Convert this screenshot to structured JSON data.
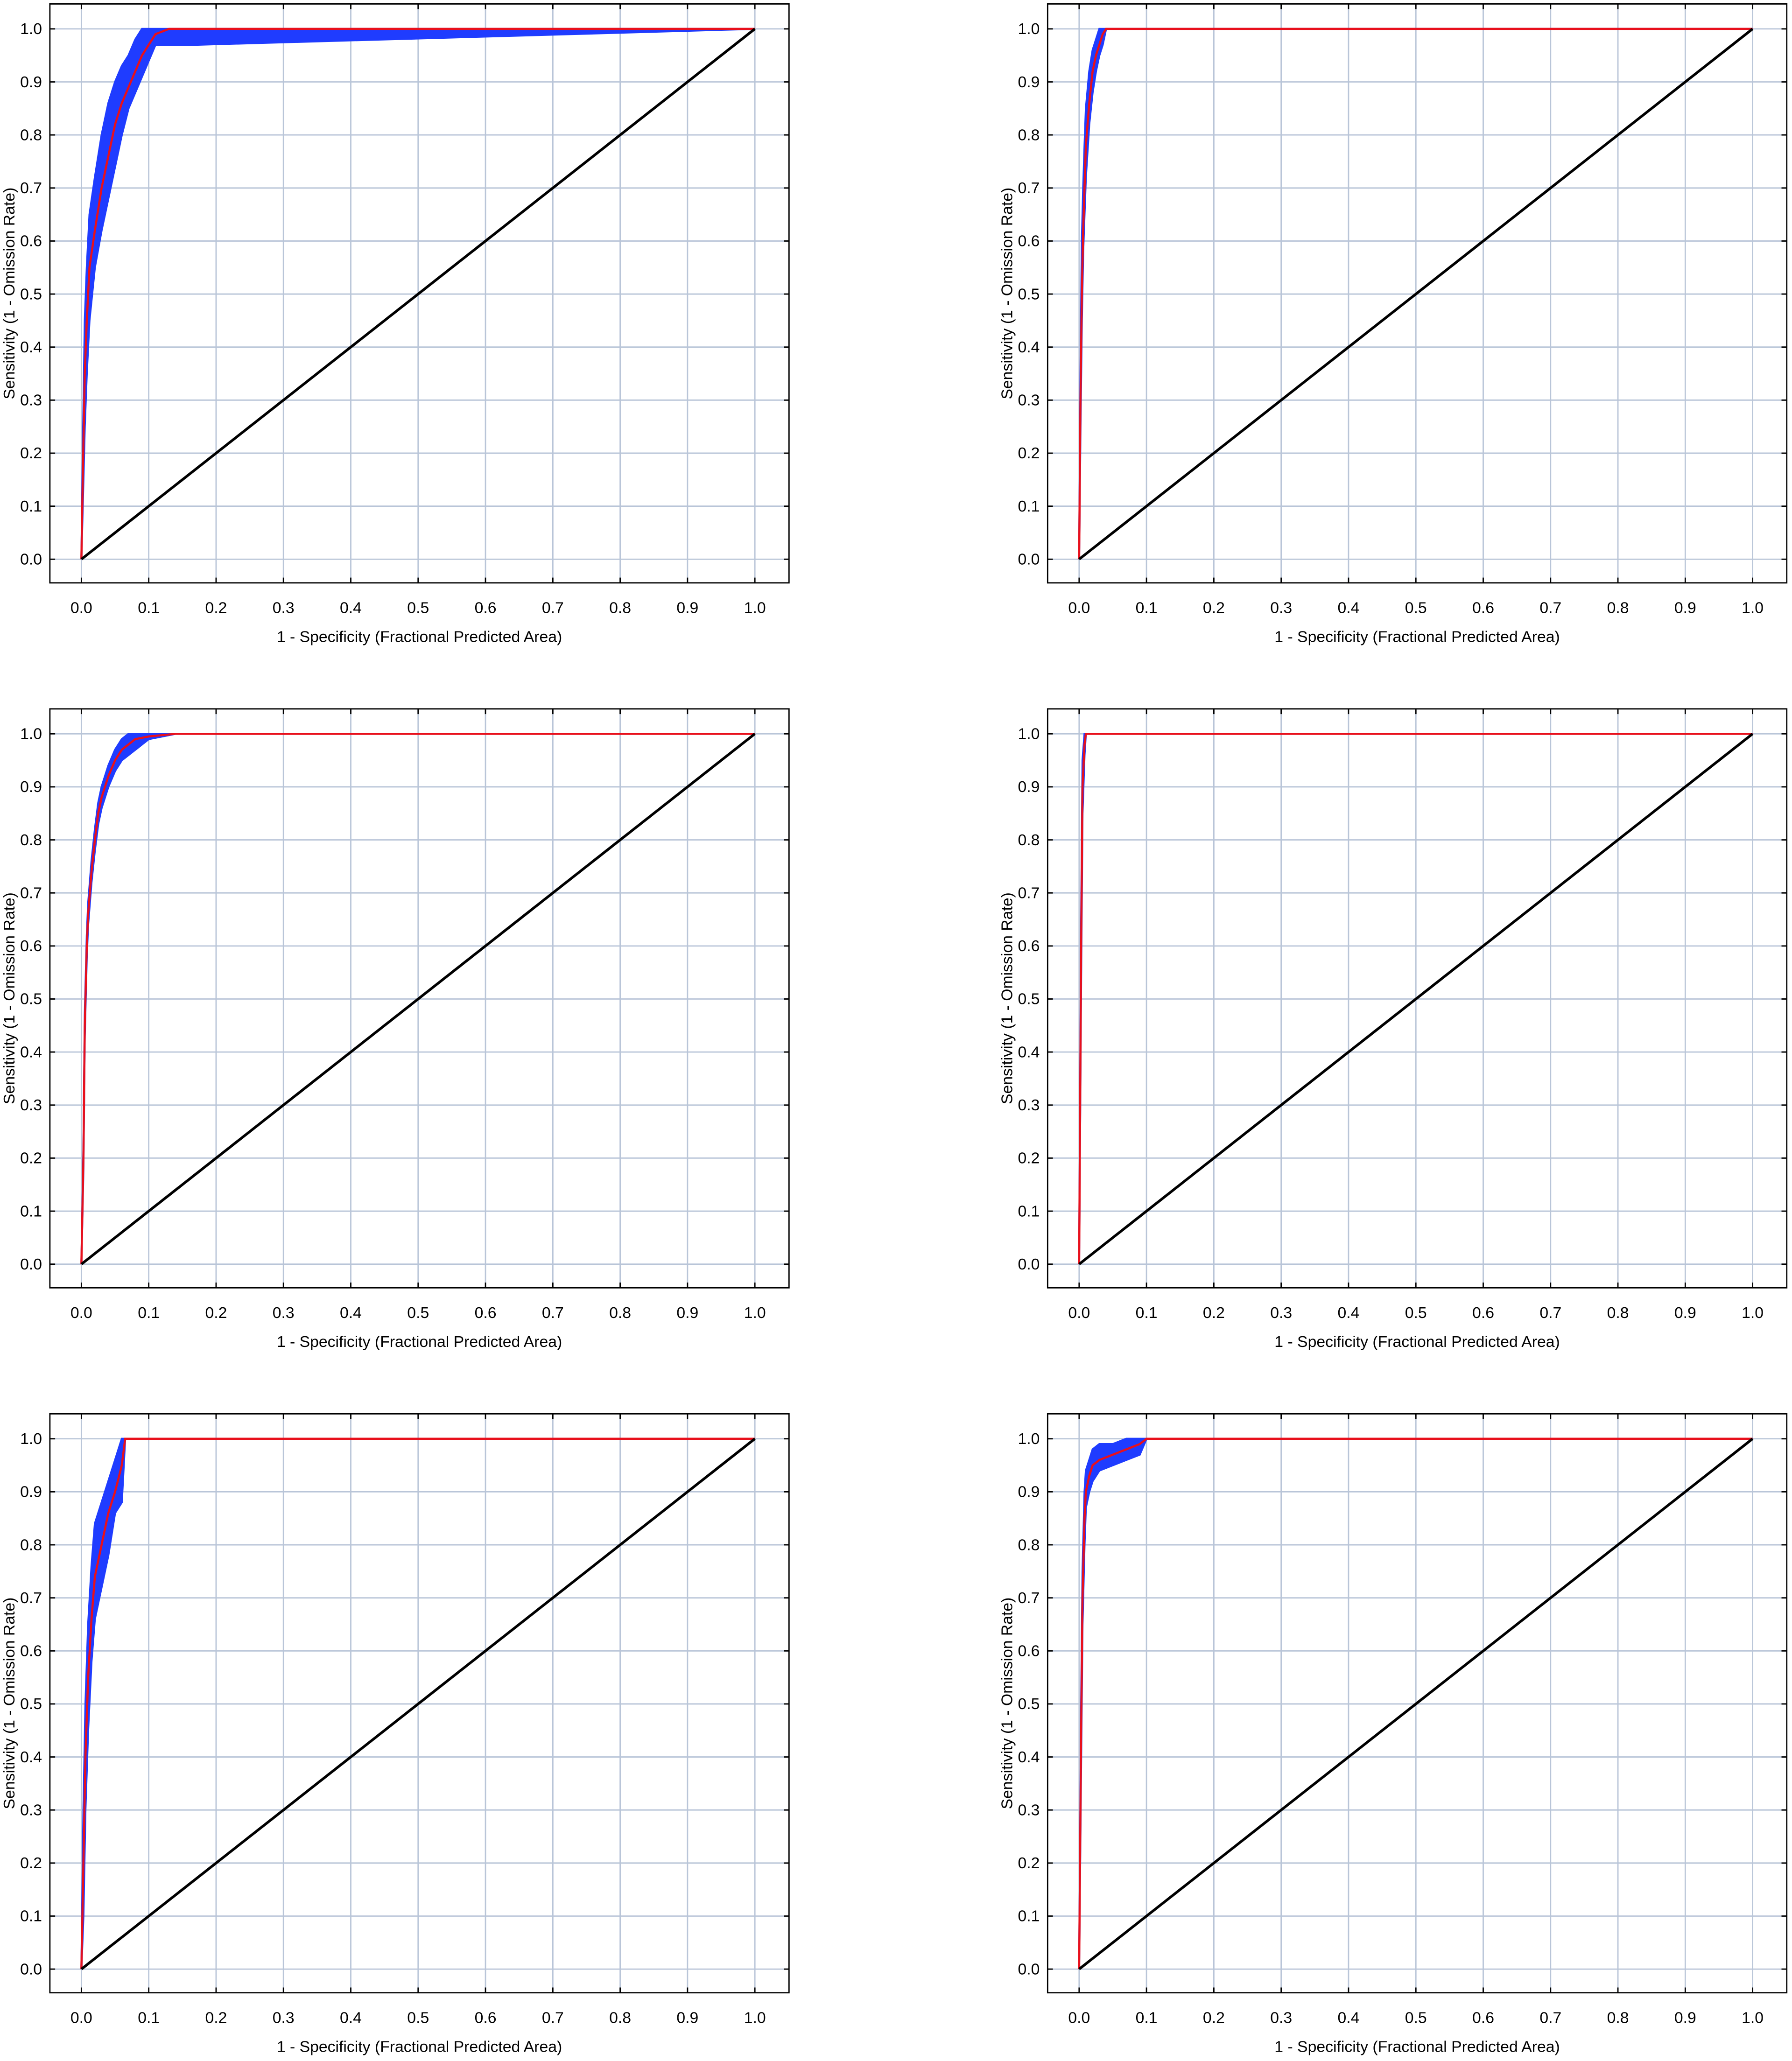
{
  "chart_data": [
    {
      "type": "line",
      "xlabel": "1 - Specificity (Fractional Predicted Area)",
      "ylabel": "Sensitivity (1 - Omission Rate)",
      "xlim": [
        0,
        1
      ],
      "ylim": [
        0,
        1
      ],
      "grid": true,
      "xticks": [
        {
          "value": 0,
          "label": "0.0"
        },
        0.1,
        0.2,
        0.3,
        0.4,
        0.5,
        0.6,
        0.7,
        0.8,
        0.9,
        {
          "value": 1,
          "label": "1.0"
        }
      ],
      "yticks": [
        {
          "value": 0,
          "label": "0.0"
        },
        0.1,
        0.2,
        0.3,
        0.4,
        0.5,
        0.6,
        0.7,
        0.8,
        0.9,
        {
          "value": 1,
          "label": "1.0"
        }
      ],
      "series": [
        {
          "color": "#e8101c",
          "band_color": "#1f3cff",
          "x": [
            0,
            0.002,
            0.005,
            0.008,
            0.012,
            0.02,
            0.03,
            0.04,
            0.05,
            0.06,
            0.07,
            0.08,
            0.09,
            0.1,
            0.11,
            0.13,
            0.17,
            1
          ],
          "values": [
            0,
            0.15,
            0.35,
            0.45,
            0.55,
            0.62,
            0.7,
            0.76,
            0.82,
            0.86,
            0.89,
            0.92,
            0.95,
            0.97,
            0.99,
            1,
            1,
            1
          ],
          "lower": [
            0,
            0.1,
            0.25,
            0.35,
            0.45,
            0.55,
            0.62,
            0.68,
            0.74,
            0.8,
            0.85,
            0.88,
            0.91,
            0.94,
            0.97,
            0.97,
            0.97,
            1
          ],
          "upper": [
            0,
            0.2,
            0.45,
            0.55,
            0.65,
            0.72,
            0.8,
            0.86,
            0.9,
            0.93,
            0.95,
            0.98,
            1,
            1,
            1,
            1,
            1,
            1
          ]
        },
        {
          "color": "#000000",
          "x": [
            0,
            1
          ],
          "values": [
            0,
            1
          ]
        }
      ]
    },
    {
      "type": "line",
      "xlabel": "1 - Specificity (Fractional Predicted Area)",
      "ylabel": "Sensitivity (1 - Omission Rate)",
      "xlim": [
        0,
        1
      ],
      "ylim": [
        0,
        1
      ],
      "grid": true,
      "xticks": [
        {
          "value": 0,
          "label": "0.0"
        },
        0.1,
        0.2,
        0.3,
        0.4,
        0.5,
        0.6,
        0.7,
        0.8,
        0.9,
        {
          "value": 1,
          "label": "1.0"
        }
      ],
      "yticks": [
        {
          "value": 0,
          "label": "0.0"
        },
        0.1,
        0.2,
        0.3,
        0.4,
        0.5,
        0.6,
        0.7,
        0.8,
        0.9,
        {
          "value": 1,
          "label": "1.0"
        }
      ],
      "series": [
        {
          "color": "#e8101c",
          "band_color": "#1f3cff",
          "x": [
            0,
            0.002,
            0.004,
            0.006,
            0.008,
            0.01,
            0.015,
            0.02,
            0.025,
            0.03,
            0.035,
            0.04,
            1
          ],
          "values": [
            0,
            0.3,
            0.5,
            0.62,
            0.7,
            0.78,
            0.86,
            0.92,
            0.95,
            0.97,
            0.99,
            1,
            1
          ],
          "lower": [
            0,
            0.25,
            0.45,
            0.58,
            0.65,
            0.72,
            0.82,
            0.88,
            0.92,
            0.95,
            0.97,
            1,
            1
          ],
          "upper": [
            0,
            0.35,
            0.6,
            0.7,
            0.78,
            0.85,
            0.92,
            0.96,
            0.98,
            1,
            1,
            1,
            1
          ]
        },
        {
          "color": "#000000",
          "x": [
            0,
            1
          ],
          "values": [
            0,
            1
          ]
        }
      ]
    },
    {
      "type": "line",
      "xlabel": "1 - Specificity (Fractional Predicted Area)",
      "ylabel": "Sensitivity (1 - Omission Rate)",
      "xlim": [
        0,
        1
      ],
      "ylim": [
        0,
        1
      ],
      "grid": true,
      "xticks": [
        {
          "value": 0,
          "label": "0.0"
        },
        0.1,
        0.2,
        0.3,
        0.4,
        0.5,
        0.6,
        0.7,
        0.8,
        0.9,
        {
          "value": 1,
          "label": "1.0"
        }
      ],
      "yticks": [
        {
          "value": 0,
          "label": "0.0"
        },
        0.1,
        0.2,
        0.3,
        0.4,
        0.5,
        0.6,
        0.7,
        0.8,
        0.9,
        {
          "value": 1,
          "label": "1.0"
        }
      ],
      "series": [
        {
          "color": "#e8101c",
          "band_color": "#1f3cff",
          "x": [
            0,
            0.003,
            0.005,
            0.008,
            0.01,
            0.015,
            0.02,
            0.025,
            0.03,
            0.04,
            0.05,
            0.06,
            0.07,
            0.08,
            0.1,
            0.14,
            1
          ],
          "values": [
            0,
            0.2,
            0.45,
            0.6,
            0.66,
            0.74,
            0.8,
            0.85,
            0.88,
            0.92,
            0.95,
            0.97,
            0.98,
            0.99,
            0.995,
            1,
            1
          ],
          "lower": [
            0,
            0.18,
            0.43,
            0.58,
            0.64,
            0.72,
            0.78,
            0.83,
            0.86,
            0.9,
            0.93,
            0.95,
            0.96,
            0.97,
            0.99,
            1,
            1
          ],
          "upper": [
            0,
            0.22,
            0.47,
            0.62,
            0.68,
            0.76,
            0.82,
            0.87,
            0.9,
            0.94,
            0.97,
            0.99,
            1,
            1,
            1,
            1,
            1
          ]
        },
        {
          "color": "#000000",
          "x": [
            0,
            1
          ],
          "values": [
            0,
            1
          ]
        }
      ]
    },
    {
      "type": "line",
      "xlabel": "1 - Specificity (Fractional Predicted Area)",
      "ylabel": "Sensitivity (1 - Omission Rate)",
      "xlim": [
        0,
        1
      ],
      "ylim": [
        0,
        1
      ],
      "grid": true,
      "xticks": [
        {
          "value": 0,
          "label": "0.0"
        },
        0.1,
        0.2,
        0.3,
        0.4,
        0.5,
        0.6,
        0.7,
        0.8,
        0.9,
        {
          "value": 1,
          "label": "1.0"
        }
      ],
      "yticks": [
        {
          "value": 0,
          "label": "0.0"
        },
        0.1,
        0.2,
        0.3,
        0.4,
        0.5,
        0.6,
        0.7,
        0.8,
        0.9,
        {
          "value": 1,
          "label": "1.0"
        }
      ],
      "series": [
        {
          "color": "#e8101c",
          "band_color": "#1f3cff",
          "x": [
            0,
            0.003,
            0.005,
            0.008,
            0.01,
            1
          ],
          "values": [
            0,
            0.6,
            0.9,
            0.98,
            1,
            1
          ],
          "lower": [
            0,
            0.55,
            0.85,
            0.96,
            1,
            1
          ],
          "upper": [
            0,
            0.65,
            0.95,
            1,
            1,
            1
          ]
        },
        {
          "color": "#000000",
          "x": [
            0,
            1
          ],
          "values": [
            0,
            1
          ]
        }
      ]
    },
    {
      "type": "line",
      "xlabel": "1 - Specificity (Fractional Predicted Area)",
      "ylabel": "Sensitivity (1 - Omission Rate)",
      "xlim": [
        0,
        1
      ],
      "ylim": [
        0,
        1
      ],
      "grid": true,
      "xticks": [
        {
          "value": 0,
          "label": "0.0"
        },
        0.1,
        0.2,
        0.3,
        0.4,
        0.5,
        0.6,
        0.7,
        0.8,
        0.9,
        {
          "value": 1,
          "label": "1.0"
        }
      ],
      "yticks": [
        {
          "value": 0,
          "label": "0.0"
        },
        0.1,
        0.2,
        0.3,
        0.4,
        0.5,
        0.6,
        0.7,
        0.8,
        0.9,
        {
          "value": 1,
          "label": "1.0"
        }
      ],
      "series": [
        {
          "color": "#e8101c",
          "band_color": "#1f3cff",
          "x": [
            0,
            0.003,
            0.006,
            0.01,
            0.015,
            0.02,
            0.03,
            0.04,
            0.05,
            0.06,
            0.065,
            1
          ],
          "values": [
            0,
            0.2,
            0.4,
            0.55,
            0.66,
            0.74,
            0.8,
            0.86,
            0.9,
            0.95,
            1,
            1
          ],
          "lower": [
            0,
            0.1,
            0.3,
            0.45,
            0.58,
            0.66,
            0.72,
            0.78,
            0.86,
            0.88,
            1,
            1
          ],
          "upper": [
            0,
            0.3,
            0.5,
            0.65,
            0.76,
            0.84,
            0.88,
            0.92,
            0.96,
            1,
            1,
            1
          ]
        },
        {
          "color": "#000000",
          "x": [
            0,
            1
          ],
          "values": [
            0,
            1
          ]
        }
      ]
    },
    {
      "type": "line",
      "xlabel": "1 - Specificity (Fractional Predicted Area)",
      "ylabel": "Sensitivity (1 - Omission Rate)",
      "xlim": [
        0,
        1
      ],
      "ylim": [
        0,
        1
      ],
      "grid": true,
      "xticks": [
        {
          "value": 0,
          "label": "0.0"
        },
        0.1,
        0.2,
        0.3,
        0.4,
        0.5,
        0.6,
        0.7,
        0.8,
        0.9,
        {
          "value": 1,
          "label": "1.0"
        }
      ],
      "yticks": [
        {
          "value": 0,
          "label": "0.0"
        },
        0.1,
        0.2,
        0.3,
        0.4,
        0.5,
        0.6,
        0.7,
        0.8,
        0.9,
        {
          "value": 1,
          "label": "1.0"
        }
      ],
      "series": [
        {
          "color": "#e8101c",
          "band_color": "#1f3cff",
          "x": [
            0,
            0.003,
            0.005,
            0.008,
            0.01,
            0.015,
            0.02,
            0.03,
            0.05,
            0.07,
            0.09,
            0.1,
            1
          ],
          "values": [
            0,
            0.45,
            0.7,
            0.85,
            0.9,
            0.93,
            0.95,
            0.96,
            0.97,
            0.98,
            0.99,
            1,
            1
          ],
          "lower": [
            0,
            0.4,
            0.65,
            0.8,
            0.87,
            0.9,
            0.92,
            0.94,
            0.95,
            0.96,
            0.97,
            1,
            1
          ],
          "upper": [
            0,
            0.5,
            0.75,
            0.9,
            0.94,
            0.96,
            0.98,
            0.99,
            0.99,
            1,
            1,
            1,
            1
          ]
        },
        {
          "color": "#000000",
          "x": [
            0,
            1
          ],
          "values": [
            0,
            1
          ]
        }
      ]
    }
  ]
}
